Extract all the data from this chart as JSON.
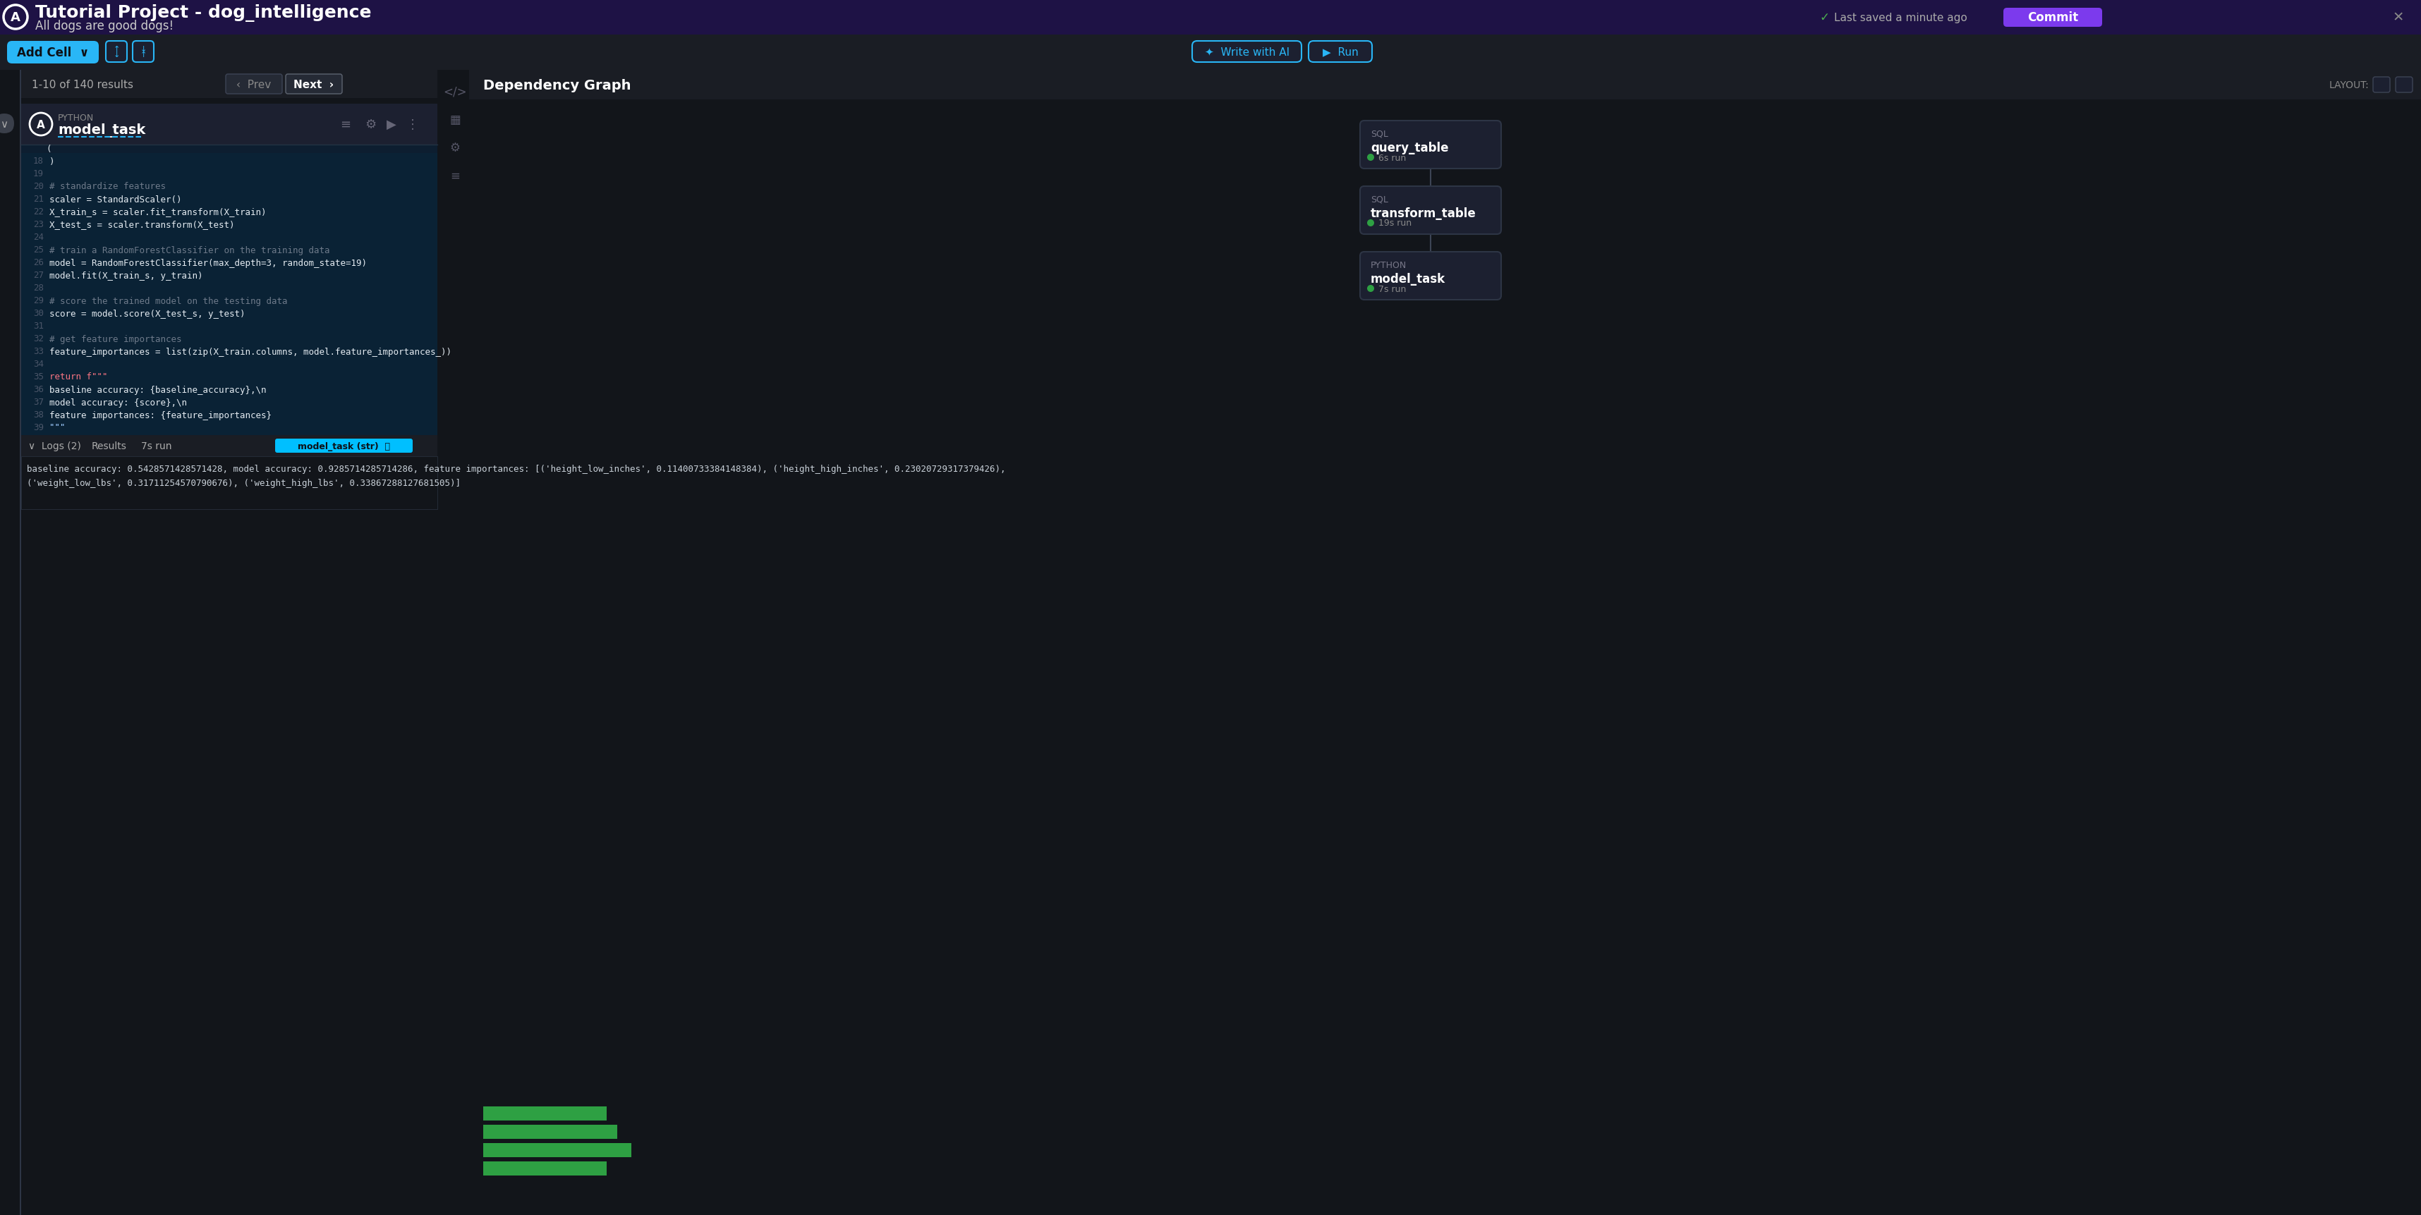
{
  "title": "Tutorial Project - dog_intelligence",
  "subtitle": "All dogs are good dogs!",
  "header_bg": "#1e1245",
  "main_bg": "#12151a",
  "toolbar_bg": "#1a1d24",
  "cell_header_bg": "#1c2030",
  "code_bg": "#0a2235",
  "output_bg": "#12151a",
  "node_bg": "#1c2030",
  "node_border": "#2d3545",
  "green_color": "#2ea043",
  "cyan_color": "#29b6f6",
  "commit_color": "#7c3aed",
  "sep_color": "#2d3545",
  "text_white": "#ffffff",
  "text_gray": "#6e7681",
  "text_light": "#adb5bd",
  "text_cyan": "#29b6f6",
  "pagination_text": "1-10 of 140 results",
  "dep_graph_title": "Dependency Graph",
  "status_text": "Last saved a minute ago",
  "logs_tab": "Logs (2)",
  "results_tab": "Results",
  "run_time_cell": "7s run",
  "cell_label": "model_task (str)",
  "line_numbers": [
    18,
    19,
    20,
    21,
    22,
    23,
    24,
    25,
    26,
    27,
    28,
    29,
    30,
    31,
    32,
    33,
    34,
    35,
    36,
    37,
    38,
    39
  ],
  "code_lines": [
    ")",
    "",
    "# standardize features",
    "scaler = StandardScaler()",
    "X_train_s = scaler.fit_transform(X_train)",
    "X_test_s = scaler.transform(X_test)",
    "",
    "# train a RandomForestClassifier on the training data",
    "model = RandomForestClassifier(max_depth=3, random_state=19)",
    "model.fit(X_train_s, y_train)",
    "",
    "# score the trained model on the testing data",
    "score = model.score(X_test_s, y_test)",
    "",
    "# get feature importances",
    "feature_importances = list(zip(X_train.columns, model.feature_importances_))",
    "",
    "return f\"\"\"",
    "baseline accuracy: {baseline_accuracy},\\n",
    "model accuracy: {score},\\n",
    "feature importances: {feature_importances}",
    "\"\"\""
  ],
  "output_line1": "baseline accuracy: 0.5428571428571428, model accuracy: 0.9285714285714286, feature importances: [('height_low_inches', 0.11400733384148384), ('height_high_inches', 0.23020729317379426),",
  "output_line2": "('weight_low_lbs', 0.31711254570790676), ('weight_high_lbs', 0.33867288127681505)]",
  "dep_nodes": [
    {
      "label": "query_table",
      "type": "SQL",
      "runtime": "6s run"
    },
    {
      "label": "transform_table",
      "type": "SQL",
      "runtime": "19s run"
    },
    {
      "label": "model_task",
      "type": "PYTHON",
      "runtime": "7s run"
    }
  ],
  "green_bars": [
    175,
    210,
    190,
    175
  ]
}
